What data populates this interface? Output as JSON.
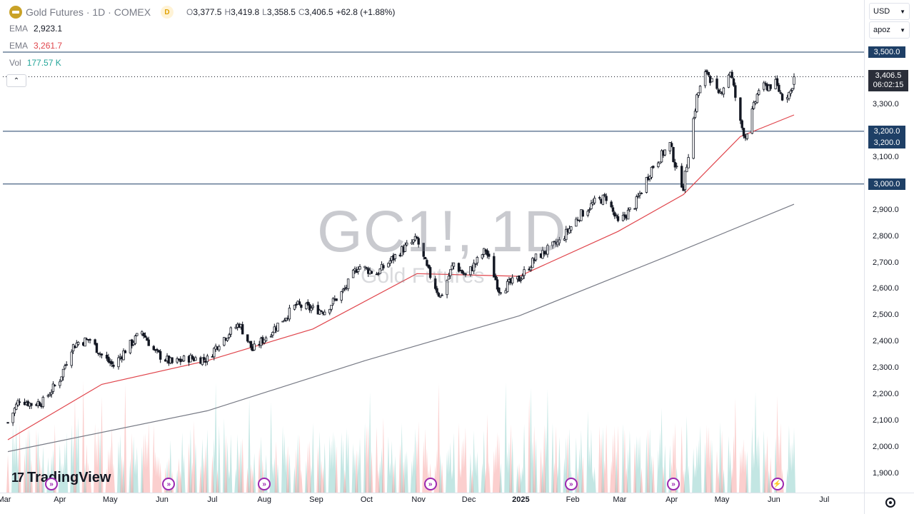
{
  "header": {
    "symbol_title": "Gold Futures · 1D · COMEX",
    "interval_badge": "D",
    "open": "3,377.5",
    "high": "3,419.8",
    "low": "3,358.5",
    "close": "3,406.5",
    "change": "+62.8 (+1.88%)",
    "open_prefix": "O",
    "high_prefix": "H",
    "low_prefix": "L",
    "close_prefix": "C"
  },
  "indicators": [
    {
      "name": "EMA",
      "value": "2,923.1",
      "color": "#787b86"
    },
    {
      "name": "EMA",
      "value": "3,261.7",
      "color": "#e0454c"
    },
    {
      "name": "Vol",
      "value": "177.57 K",
      "color": "#26a69a"
    }
  ],
  "collapse_icon": "chevron-up-icon",
  "toolbar": {
    "currency": "USD",
    "scale_mode": "apoz"
  },
  "watermark": {
    "main": "GC1!, 1D",
    "sub": "Gold Futures"
  },
  "branding": {
    "logo_text": "TradingView",
    "logo_mark": "17"
  },
  "price_tags": {
    "line_3500": "3,500.0",
    "line_3200_a": "3,200.0",
    "line_3200_b": "3,200.0",
    "line_3000": "3,000.0",
    "last_price": "3,406.5",
    "countdown": "06:02:15"
  },
  "colors": {
    "ema_fast": "#e0454c",
    "ema_slow": "#787b86",
    "hline": "#1e3f66",
    "vol_up": "#26a69a",
    "vol_down": "#ef5350",
    "candle": "#131722"
  },
  "event_icons": [
    "arrow-forward-icon",
    "arrow-forward-icon",
    "arrow-forward-icon",
    "arrow-forward-icon",
    "arrow-forward-icon",
    "arrow-forward-icon",
    "lightning-icon"
  ],
  "chart_data": {
    "type": "candlestick",
    "symbol": "GC1!",
    "interval": "1D",
    "y_tick_labels": [
      "3,300.0",
      "3,100.0",
      "2,900.0",
      "2,800.0",
      "2,700.0",
      "2,600.0",
      "2,500.0",
      "2,400.0",
      "2,300.0",
      "2,200.0",
      "2,100.0",
      "2,000.0",
      "1,900.0"
    ],
    "x_tick_labels": [
      "Mar",
      "Apr",
      "May",
      "Jun",
      "Jul",
      "Aug",
      "Sep",
      "Oct",
      "Nov",
      "Dec",
      "2025",
      "Feb",
      "Mar",
      "Apr",
      "May",
      "Jun",
      "Jul"
    ],
    "ylim": [
      1880,
      3560
    ],
    "horizontal_lines": [
      3500,
      3200,
      3000
    ],
    "last_price": 3406.5,
    "close_path": [
      {
        "date": "2024-03-01",
        "close": 2095
      },
      {
        "date": "2024-03-08",
        "close": 2185
      },
      {
        "date": "2024-03-15",
        "close": 2165
      },
      {
        "date": "2024-03-22",
        "close": 2175
      },
      {
        "date": "2024-04-01",
        "close": 2260
      },
      {
        "date": "2024-04-08",
        "close": 2380
      },
      {
        "date": "2024-04-12",
        "close": 2400
      },
      {
        "date": "2024-04-19",
        "close": 2410
      },
      {
        "date": "2024-04-26",
        "close": 2350
      },
      {
        "date": "2024-05-03",
        "close": 2310
      },
      {
        "date": "2024-05-10",
        "close": 2370
      },
      {
        "date": "2024-05-20",
        "close": 2440
      },
      {
        "date": "2024-05-28",
        "close": 2360
      },
      {
        "date": "2024-06-07",
        "close": 2320
      },
      {
        "date": "2024-06-17",
        "close": 2340
      },
      {
        "date": "2024-06-28",
        "close": 2335
      },
      {
        "date": "2024-07-05",
        "close": 2400
      },
      {
        "date": "2024-07-17",
        "close": 2470
      },
      {
        "date": "2024-07-25",
        "close": 2370
      },
      {
        "date": "2024-08-05",
        "close": 2440
      },
      {
        "date": "2024-08-20",
        "close": 2540
      },
      {
        "date": "2024-08-30",
        "close": 2525
      },
      {
        "date": "2024-09-06",
        "close": 2520
      },
      {
        "date": "2024-09-18",
        "close": 2600
      },
      {
        "date": "2024-09-26",
        "close": 2690
      },
      {
        "date": "2024-10-07",
        "close": 2660
      },
      {
        "date": "2024-10-22",
        "close": 2750
      },
      {
        "date": "2024-10-31",
        "close": 2790
      },
      {
        "date": "2024-11-06",
        "close": 2680
      },
      {
        "date": "2024-11-14",
        "close": 2570
      },
      {
        "date": "2024-11-22",
        "close": 2700
      },
      {
        "date": "2024-11-29",
        "close": 2650
      },
      {
        "date": "2024-12-11",
        "close": 2750
      },
      {
        "date": "2024-12-19",
        "close": 2600
      },
      {
        "date": "2024-12-31",
        "close": 2640
      },
      {
        "date": "2025-01-10",
        "close": 2720
      },
      {
        "date": "2025-01-24",
        "close": 2780
      },
      {
        "date": "2025-02-05",
        "close": 2880
      },
      {
        "date": "2025-02-14",
        "close": 2930
      },
      {
        "date": "2025-02-21",
        "close": 2950
      },
      {
        "date": "2025-02-28",
        "close": 2850
      },
      {
        "date": "2025-03-10",
        "close": 2920
      },
      {
        "date": "2025-03-20",
        "close": 3060
      },
      {
        "date": "2025-03-31",
        "close": 3150
      },
      {
        "date": "2025-04-04",
        "close": 3050
      },
      {
        "date": "2025-04-08",
        "close": 2990
      },
      {
        "date": "2025-04-16",
        "close": 3330
      },
      {
        "date": "2025-04-22",
        "close": 3430
      },
      {
        "date": "2025-04-29",
        "close": 3330
      },
      {
        "date": "2025-05-06",
        "close": 3430
      },
      {
        "date": "2025-05-12",
        "close": 3230
      },
      {
        "date": "2025-05-15",
        "close": 3180
      },
      {
        "date": "2025-05-23",
        "close": 3360
      },
      {
        "date": "2025-06-02",
        "close": 3380
      },
      {
        "date": "2025-06-06",
        "close": 3330
      },
      {
        "date": "2025-06-11",
        "close": 3350
      },
      {
        "date": "2025-06-13",
        "close": 3406.5
      }
    ],
    "ema_fast_path": [
      {
        "date": "2024-03-01",
        "value": 2030
      },
      {
        "date": "2024-04-26",
        "value": 2240
      },
      {
        "date": "2024-06-28",
        "value": 2330
      },
      {
        "date": "2024-08-30",
        "value": 2450
      },
      {
        "date": "2024-10-31",
        "value": 2660
      },
      {
        "date": "2024-12-31",
        "value": 2650
      },
      {
        "date": "2025-02-28",
        "value": 2820
      },
      {
        "date": "2025-04-08",
        "value": 2960
      },
      {
        "date": "2025-05-12",
        "value": 3180
      },
      {
        "date": "2025-06-13",
        "value": 3261.7
      }
    ],
    "ema_slow_path": [
      {
        "date": "2024-03-01",
        "value": 1985
      },
      {
        "date": "2024-06-28",
        "value": 2140
      },
      {
        "date": "2024-09-30",
        "value": 2330
      },
      {
        "date": "2024-12-31",
        "value": 2500
      },
      {
        "date": "2025-03-31",
        "value": 2730
      },
      {
        "date": "2025-06-13",
        "value": 2923.1
      }
    ],
    "volume_label": "Vol",
    "volume_value": "177.57 K"
  }
}
